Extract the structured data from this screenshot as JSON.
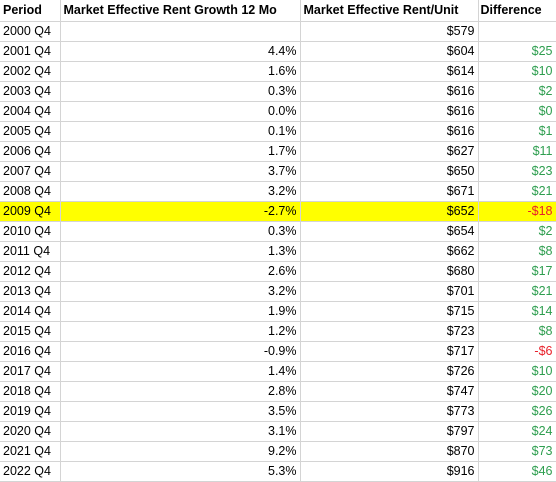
{
  "header": {
    "period": "Period",
    "growth": "Market Effective Rent Growth 12 Mo",
    "rent": "Market Effective Rent/Unit",
    "difference": "Difference"
  },
  "colors": {
    "positive": "#2e9e4f",
    "negative": "#e8202a",
    "highlight": "#ffff00",
    "gridline": "#d4d4d4"
  },
  "highlighted_period": "2009 Q4",
  "rows": [
    {
      "period": "2000 Q4",
      "growth": "",
      "rent": "$579",
      "diff": "",
      "sign": ""
    },
    {
      "period": "2001 Q4",
      "growth": "4.4%",
      "rent": "$604",
      "diff": "$25",
      "sign": "pos"
    },
    {
      "period": "2002 Q4",
      "growth": "1.6%",
      "rent": "$614",
      "diff": "$10",
      "sign": "pos"
    },
    {
      "period": "2003 Q4",
      "growth": "0.3%",
      "rent": "$616",
      "diff": "$2",
      "sign": "pos"
    },
    {
      "period": "2004 Q4",
      "growth": "0.0%",
      "rent": "$616",
      "diff": "$0",
      "sign": "pos"
    },
    {
      "period": "2005 Q4",
      "growth": "0.1%",
      "rent": "$616",
      "diff": "$1",
      "sign": "pos"
    },
    {
      "period": "2006 Q4",
      "growth": "1.7%",
      "rent": "$627",
      "diff": "$11",
      "sign": "pos"
    },
    {
      "period": "2007 Q4",
      "growth": "3.7%",
      "rent": "$650",
      "diff": "$23",
      "sign": "pos"
    },
    {
      "period": "2008 Q4",
      "growth": "3.2%",
      "rent": "$671",
      "diff": "$21",
      "sign": "pos"
    },
    {
      "period": "2009 Q4",
      "growth": "-2.7%",
      "rent": "$652",
      "diff": "-$18",
      "sign": "neg"
    },
    {
      "period": "2010 Q4",
      "growth": "0.3%",
      "rent": "$654",
      "diff": "$2",
      "sign": "pos"
    },
    {
      "period": "2011 Q4",
      "growth": "1.3%",
      "rent": "$662",
      "diff": "$8",
      "sign": "pos"
    },
    {
      "period": "2012 Q4",
      "growth": "2.6%",
      "rent": "$680",
      "diff": "$17",
      "sign": "pos"
    },
    {
      "period": "2013 Q4",
      "growth": "3.2%",
      "rent": "$701",
      "diff": "$21",
      "sign": "pos"
    },
    {
      "period": "2014 Q4",
      "growth": "1.9%",
      "rent": "$715",
      "diff": "$14",
      "sign": "pos"
    },
    {
      "period": "2015 Q4",
      "growth": "1.2%",
      "rent": "$723",
      "diff": "$8",
      "sign": "pos"
    },
    {
      "period": "2016 Q4",
      "growth": "-0.9%",
      "rent": "$717",
      "diff": "-$6",
      "sign": "neg"
    },
    {
      "period": "2017 Q4",
      "growth": "1.4%",
      "rent": "$726",
      "diff": "$10",
      "sign": "pos"
    },
    {
      "period": "2018 Q4",
      "growth": "2.8%",
      "rent": "$747",
      "diff": "$20",
      "sign": "pos"
    },
    {
      "period": "2019 Q4",
      "growth": "3.5%",
      "rent": "$773",
      "diff": "$26",
      "sign": "pos"
    },
    {
      "period": "2020 Q4",
      "growth": "3.1%",
      "rent": "$797",
      "diff": "$24",
      "sign": "pos"
    },
    {
      "period": "2021 Q4",
      "growth": "9.2%",
      "rent": "$870",
      "diff": "$73",
      "sign": "pos"
    },
    {
      "period": "2022 Q4",
      "growth": "5.3%",
      "rent": "$916",
      "diff": "$46",
      "sign": "pos"
    }
  ]
}
